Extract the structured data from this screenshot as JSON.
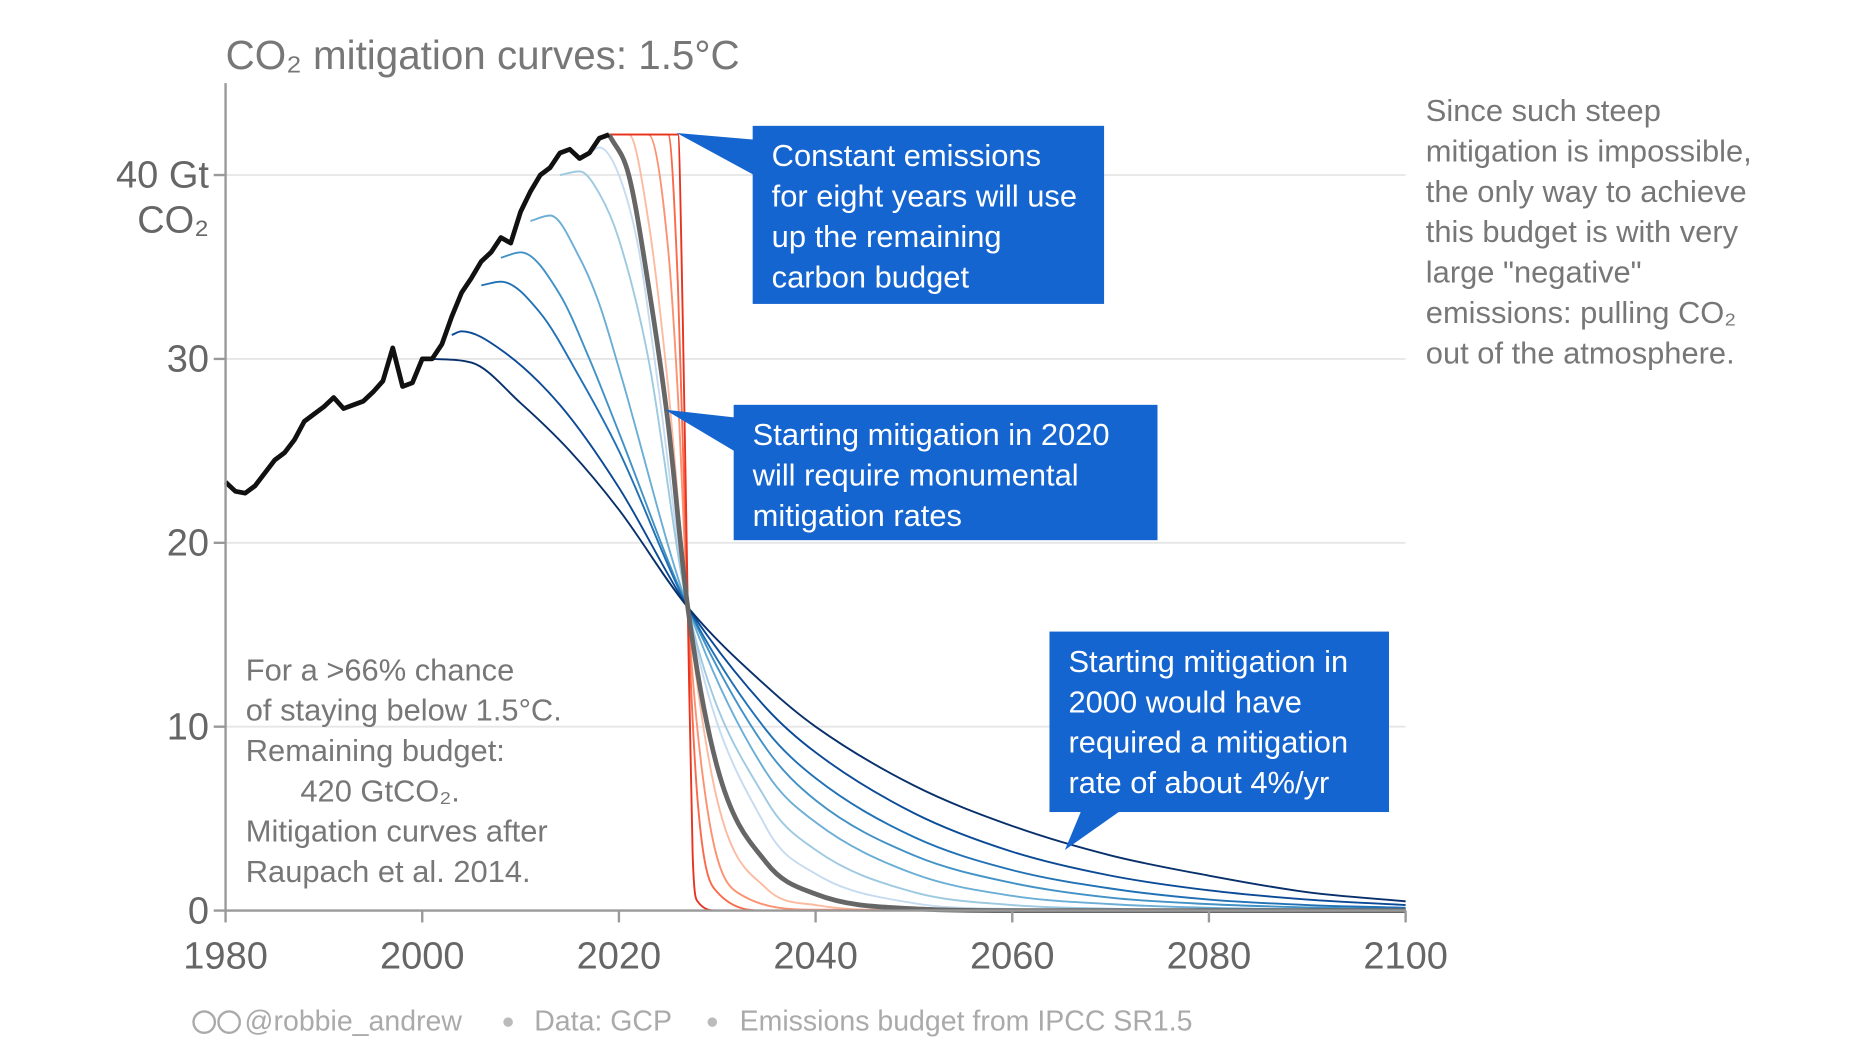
{
  "chart_data": {
    "type": "line",
    "title": "CO₂ mitigation curves: 1.5°C",
    "xlim": [
      1980,
      2100
    ],
    "xticks": [
      1980,
      2000,
      2020,
      2040,
      2060,
      2080,
      2100
    ],
    "ylim": [
      0,
      45
    ],
    "yticks": [
      0,
      10,
      20,
      30,
      {
        "value": 40,
        "label": "40 Gt CO₂"
      }
    ],
    "grid": true,
    "historical": {
      "color": "#111111",
      "x": [
        1980,
        1981,
        1982,
        1983,
        1984,
        1985,
        1986,
        1987,
        1988,
        1989,
        1990,
        1991,
        1992,
        1993,
        1994,
        1995,
        1996,
        1997,
        1998,
        1999,
        2000,
        2001,
        2002,
        2003,
        2004,
        2005,
        2006,
        2007,
        2008,
        2009,
        2010,
        2011,
        2012,
        2013,
        2014,
        2015,
        2016,
        2017,
        2018,
        2019
      ],
      "values": [
        23.3,
        22.8,
        22.7,
        23.1,
        23.8,
        24.5,
        24.9,
        25.6,
        26.6,
        27.0,
        27.4,
        27.9,
        27.3,
        27.5,
        27.7,
        28.2,
        28.8,
        30.6,
        28.5,
        28.7,
        30.0,
        30.0,
        30.8,
        32.3,
        33.6,
        34.4,
        35.3,
        35.8,
        36.6,
        36.3,
        38.0,
        39.1,
        40.0,
        40.4,
        41.2,
        41.4,
        40.9,
        41.2,
        42.0,
        42.2
      ]
    },
    "series": [
      {
        "color": "#fcbba1",
        "x": [
          2019,
          2021,
          2023,
          2025,
          2027,
          2030,
          2035,
          2040,
          2050,
          2100
        ],
        "values": [
          42.2,
          42.2,
          37.5,
          28.5,
          16.5,
          6.0,
          1.2,
          0.3,
          0,
          0
        ]
      },
      {
        "color": "#fc9272",
        "x": [
          2019,
          2023,
          2025,
          2026,
          2027,
          2029,
          2032,
          2040,
          2100
        ],
        "values": [
          42.2,
          42.2,
          36,
          28,
          16.5,
          5.5,
          1.0,
          0.05,
          0
        ]
      },
      {
        "color": "#fb6a4a",
        "x": [
          2019,
          2025,
          2026,
          2027,
          2028,
          2030,
          2035,
          2100
        ],
        "values": [
          42.2,
          42.2,
          34,
          16.5,
          6,
          1,
          0,
          0
        ]
      },
      {
        "color": "#e8331f",
        "x": [
          2019,
          2026,
          2026.5,
          2027,
          2027.5,
          2028,
          2030,
          2100
        ],
        "values": [
          42.2,
          42.2,
          32,
          16.5,
          3,
          0.5,
          0,
          0
        ]
      },
      {
        "color": "#c6dbef",
        "x": [
          2017,
          2018,
          2020,
          2022,
          2024,
          2027,
          2035,
          2040,
          2050,
          2060,
          2070,
          2080,
          2090,
          2100
        ],
        "values": [
          41.2,
          41.5,
          40.0,
          36.0,
          28.5,
          16.5,
          4.5,
          2.0,
          0.4,
          0.08,
          0.02,
          0,
          0,
          0
        ]
      },
      {
        "color": "#9ecae1",
        "x": [
          2014,
          2016,
          2018,
          2020,
          2023,
          2027,
          2035,
          2040,
          2050,
          2060,
          2070,
          2080,
          2090,
          2100
        ],
        "values": [
          40.0,
          40.2,
          39.0,
          36.5,
          30.0,
          16.5,
          6.0,
          3.3,
          1.0,
          0.3,
          0.1,
          0.03,
          0.01,
          0
        ]
      },
      {
        "color": "#6baed6",
        "x": [
          2011,
          2013,
          2016,
          2018,
          2020,
          2027,
          2035,
          2040,
          2050,
          2060,
          2070,
          2080,
          2090,
          2100
        ],
        "values": [
          37.5,
          37.8,
          35.5,
          33.0,
          29.5,
          16.5,
          7.5,
          4.8,
          2.0,
          0.8,
          0.35,
          0.15,
          0.06,
          0.03
        ]
      },
      {
        "color": "#4292c6",
        "x": [
          2008,
          2010,
          2014,
          2017,
          2020,
          2027,
          2035,
          2040,
          2050,
          2060,
          2070,
          2080,
          2090,
          2100
        ],
        "values": [
          35.5,
          35.8,
          33.5,
          30.0,
          26.0,
          16.5,
          8.8,
          6.0,
          3.0,
          1.5,
          0.7,
          0.35,
          0.17,
          0.08
        ]
      },
      {
        "color": "#2171b5",
        "x": [
          2006,
          2008,
          2012,
          2016,
          2020,
          2027,
          2035,
          2040,
          2050,
          2060,
          2070,
          2080,
          2090,
          2100
        ],
        "values": [
          34.0,
          34.2,
          32.5,
          29.0,
          25.0,
          16.5,
          9.8,
          7.2,
          4.0,
          2.2,
          1.2,
          0.6,
          0.3,
          0.15
        ]
      },
      {
        "color": "#0b4a96",
        "x": [
          2003,
          2004,
          2008,
          2014,
          2020,
          2027,
          2035,
          2040,
          2050,
          2060,
          2070,
          2080,
          2090,
          2100
        ],
        "values": [
          31.3,
          31.5,
          30.5,
          27.5,
          23.0,
          16.5,
          11.0,
          8.6,
          5.3,
          3.2,
          1.9,
          1.1,
          0.6,
          0.3
        ]
      },
      {
        "color": "#08306b",
        "x": [
          2001,
          2005,
          2010,
          2015,
          2020,
          2027,
          2035,
          2040,
          2050,
          2060,
          2070,
          2080,
          2090,
          2100
        ],
        "values": [
          30.0,
          29.8,
          27.6,
          25.0,
          21.8,
          16.5,
          12.2,
          10.0,
          6.8,
          4.6,
          3.0,
          1.9,
          1.0,
          0.5
        ]
      },
      {
        "color": "#666666",
        "x": [
          2019,
          2021,
          2023,
          2025,
          2027,
          2030,
          2035,
          2040,
          2050,
          2060,
          2100
        ],
        "values": [
          42.2,
          40.0,
          34.0,
          26.5,
          16.5,
          7.8,
          2.6,
          0.9,
          0.1,
          0,
          0
        ]
      }
    ],
    "annotations": [
      "Constant emissions for eight years will use up the remaining carbon budget",
      "Starting mitigation in 2020 will require monumental mitigation rates",
      "Starting mitigation in 2000 would have required a mitigation rate of about 4%/yr"
    ],
    "side_note": "Since such steep mitigation is impossible, the only way to achieve this budget is with very large \"negative\" emissions: pulling CO₂ out of the atmosphere.",
    "left_note": [
      "For a >66% chance",
      "of staying below 1.5°C.",
      "Remaining budget:",
      "420 GtCO₂.",
      "Mitigation curves after",
      "Raupach et al. 2014."
    ],
    "footer": [
      "@robbie_andrew",
      "Data: GCP",
      "Emissions budget from IPCC SR1.5"
    ]
  }
}
